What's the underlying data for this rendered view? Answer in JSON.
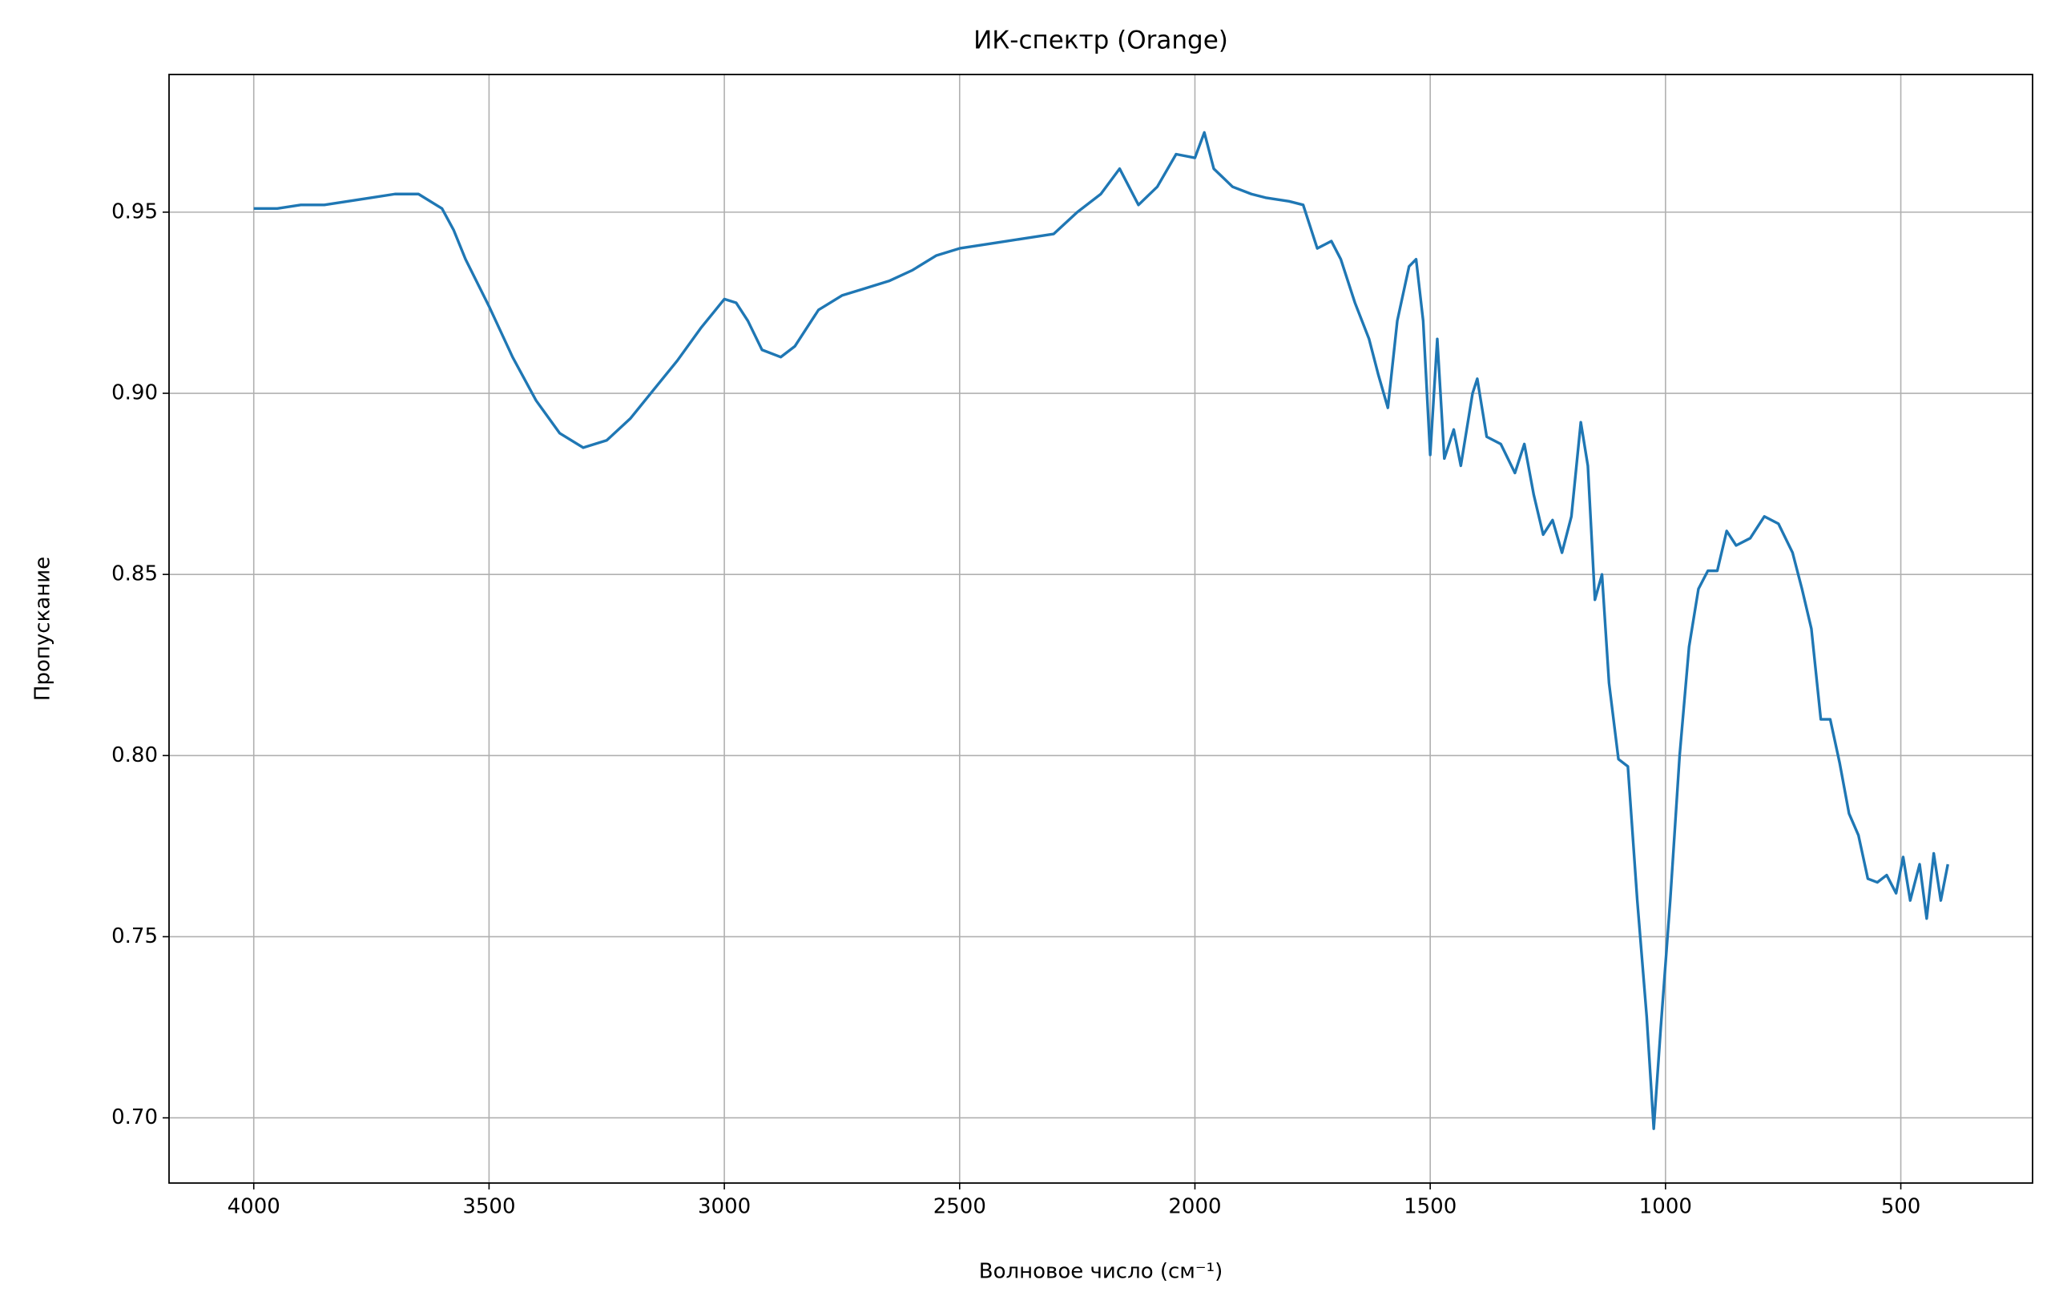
{
  "chart_data": {
    "type": "line",
    "title": "ИК-спектр (Orange)",
    "x_label": "Волновое число (см⁻¹)",
    "y_label": "Пропускание",
    "color": "#1f77b4",
    "grid": true,
    "x": [
      4000,
      3950,
      3900,
      3850,
      3800,
      3750,
      3700,
      3650,
      3600,
      3575,
      3550,
      3500,
      3450,
      3400,
      3350,
      3300,
      3250,
      3200,
      3150,
      3100,
      3050,
      3000,
      2975,
      2950,
      2920,
      2880,
      2850,
      2800,
      2750,
      2700,
      2650,
      2600,
      2550,
      2500,
      2450,
      2400,
      2350,
      2300,
      2250,
      2200,
      2160,
      2120,
      2080,
      2040,
      2000,
      1980,
      1960,
      1920,
      1880,
      1850,
      1800,
      1770,
      1740,
      1710,
      1690,
      1660,
      1630,
      1610,
      1590,
      1570,
      1545,
      1530,
      1515,
      1500,
      1485,
      1470,
      1450,
      1435,
      1410,
      1400,
      1380,
      1350,
      1320,
      1300,
      1280,
      1260,
      1240,
      1220,
      1200,
      1180,
      1165,
      1150,
      1135,
      1120,
      1100,
      1080,
      1060,
      1040,
      1025,
      1010,
      990,
      970,
      950,
      930,
      910,
      890,
      870,
      850,
      820,
      790,
      760,
      730,
      710,
      690,
      670,
      650,
      630,
      610,
      590,
      570,
      550,
      530,
      510,
      495,
      480,
      460,
      445,
      430,
      415,
      400
    ],
    "values": [
      0.951,
      0.951,
      0.952,
      0.952,
      0.953,
      0.954,
      0.955,
      0.955,
      0.951,
      0.945,
      0.937,
      0.924,
      0.91,
      0.898,
      0.889,
      0.885,
      0.887,
      0.893,
      0.901,
      0.909,
      0.918,
      0.926,
      0.925,
      0.92,
      0.912,
      0.91,
      0.913,
      0.923,
      0.927,
      0.929,
      0.931,
      0.934,
      0.938,
      0.94,
      0.941,
      0.942,
      0.943,
      0.944,
      0.95,
      0.955,
      0.962,
      0.952,
      0.957,
      0.966,
      0.965,
      0.972,
      0.962,
      0.957,
      0.955,
      0.954,
      0.953,
      0.952,
      0.94,
      0.942,
      0.937,
      0.925,
      0.915,
      0.905,
      0.896,
      0.92,
      0.935,
      0.937,
      0.92,
      0.883,
      0.915,
      0.882,
      0.89,
      0.88,
      0.9,
      0.904,
      0.888,
      0.886,
      0.878,
      0.886,
      0.872,
      0.861,
      0.865,
      0.856,
      0.866,
      0.892,
      0.88,
      0.843,
      0.85,
      0.82,
      0.799,
      0.797,
      0.76,
      0.728,
      0.697,
      0.725,
      0.76,
      0.8,
      0.83,
      0.846,
      0.851,
      0.851,
      0.862,
      0.858,
      0.86,
      0.866,
      0.864,
      0.856,
      0.846,
      0.835,
      0.81,
      0.81,
      0.798,
      0.784,
      0.778,
      0.766,
      0.765,
      0.767,
      0.762,
      0.772,
      0.76,
      0.77,
      0.755,
      0.773,
      0.76,
      0.77
    ],
    "xlim": [
      4180,
      220
    ],
    "xticks": [
      4000,
      3500,
      3000,
      2500,
      2000,
      1500,
      1000,
      500
    ],
    "ylim": [
      0.682,
      0.988
    ],
    "yticks": [
      {
        "value": 0.7,
        "label": "0.70"
      },
      {
        "value": 0.75,
        "label": "0.75"
      },
      {
        "value": 0.8,
        "label": "0.80"
      },
      {
        "value": 0.85,
        "label": "0.85"
      },
      {
        "value": 0.9,
        "label": "0.90"
      },
      {
        "value": 0.95,
        "label": "0.95"
      }
    ]
  }
}
